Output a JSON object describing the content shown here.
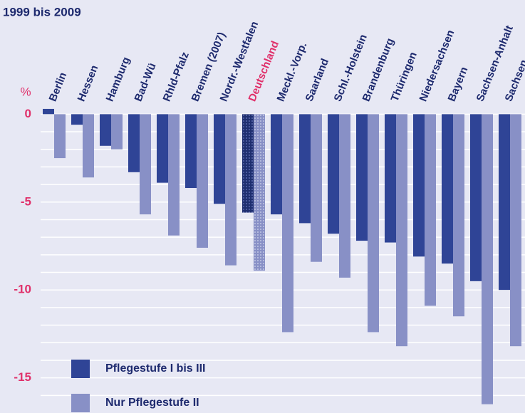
{
  "chart_data": {
    "type": "bar",
    "subtitle": "1999 bis 2009",
    "y_unit": "%",
    "categories": [
      "Berlin",
      "Hessen",
      "Hamburg",
      "Bad-Wü",
      "Rhld-Pfalz",
      "Bremen (2007)",
      "Nordr.-Westfalen",
      "Deutschland",
      "Meckl.-Vorp.",
      "Saarland",
      "Schl.-Holstein",
      "Brandenburg",
      "Thüringen",
      "Niedersachsen",
      "Bayern",
      "Sachsen-Anhalt",
      "Sachsen"
    ],
    "series": [
      {
        "name": "Pflegestufe I bis III",
        "color": "#2f4496",
        "values": [
          0.3,
          -0.6,
          -1.8,
          -3.3,
          -3.9,
          -4.2,
          -5.1,
          -5.6,
          -5.7,
          -6.2,
          -6.8,
          -7.2,
          -7.3,
          -8.1,
          -8.5,
          -9.5,
          -10.0
        ]
      },
      {
        "name": "Nur Pflegestufe II",
        "color": "#8890c6",
        "values": [
          -2.5,
          -3.6,
          -2.0,
          -5.7,
          -6.9,
          -7.6,
          -8.6,
          -8.9,
          -12.4,
          -8.4,
          -9.3,
          -12.4,
          -13.2,
          -10.9,
          -11.5,
          -16.5,
          -13.2
        ]
      }
    ],
    "highlight_index": 7,
    "highlight_color": "#e0306a",
    "ylim": [
      -17,
      0.5
    ],
    "yticks": [
      0,
      -5,
      -10,
      -15
    ],
    "minor_yticks": [
      -1,
      -2,
      -3,
      -4,
      -6,
      -7,
      -8,
      -9,
      -11,
      -12,
      -13,
      -14,
      -16
    ],
    "grid": true
  }
}
